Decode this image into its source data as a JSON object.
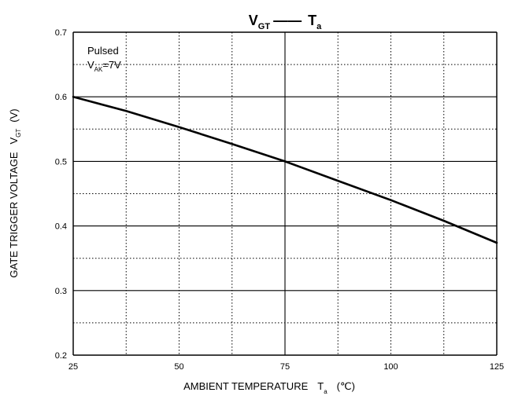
{
  "chart_data": {
    "type": "line",
    "title": {
      "main": "V",
      "main_sub": "GT",
      "dash": "——",
      "end": "T",
      "end_sub": "a"
    },
    "xlabel": {
      "text": "AMBIENT TEMPERATURE",
      "var": "T",
      "var_sub": "a",
      "unit": "(℃)"
    },
    "ylabel": {
      "text": "GATE TRIGGER VOLTAGE",
      "var": "V",
      "var_sub": "GT",
      "unit": "(V)"
    },
    "xlim": [
      25,
      125
    ],
    "ylim": [
      0.2,
      0.7
    ],
    "x_ticks": [
      "25",
      "50",
      "75",
      "100",
      "125"
    ],
    "y_ticks": [
      "0.2",
      "0.3",
      "0.4",
      "0.5",
      "0.6",
      "0.7"
    ],
    "major_x": [
      25,
      75,
      125
    ],
    "dotted_x": [
      37.5,
      50,
      62.5,
      87.5,
      100,
      112.5
    ],
    "major_y": [
      0.2,
      0.3,
      0.4,
      0.5,
      0.6,
      0.7
    ],
    "dotted_y": [
      0.25,
      0.35,
      0.45,
      0.55,
      0.65
    ],
    "annotation": {
      "line1": "Pulsed",
      "line2_var": "V",
      "line2_sub": "AK",
      "line2_rest": "=7V"
    },
    "series": [
      {
        "x": [
          25,
          37.5,
          50,
          62.5,
          75,
          87.5,
          100,
          112.5,
          125
        ],
        "y": [
          0.6,
          0.578,
          0.553,
          0.527,
          0.5,
          0.47,
          0.44,
          0.408,
          0.374
        ]
      }
    ]
  }
}
